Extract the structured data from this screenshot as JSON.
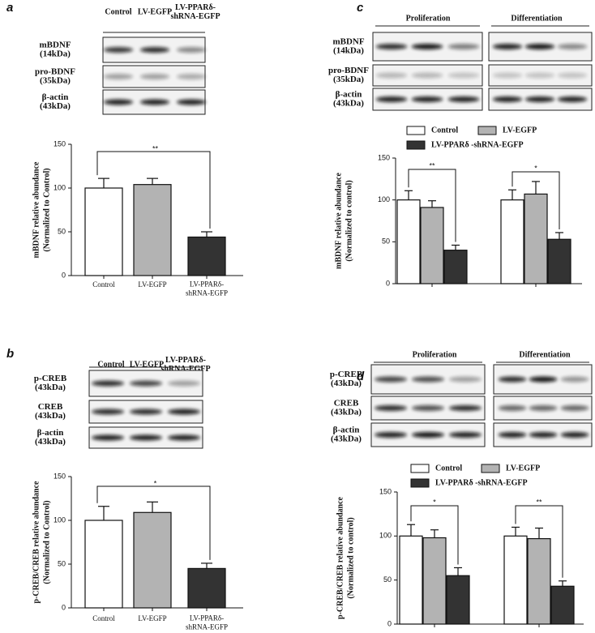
{
  "panels": [
    {
      "letter": "a",
      "blot": {
        "columns": [
          "Control",
          "LV-EGFP",
          [
            "LV-PPARδ-",
            "shRNA-EGFP"
          ]
        ],
        "rows": [
          [
            "mBDNF",
            "(14kDa)"
          ],
          [
            "pro-BDNF",
            "(35kDa)"
          ],
          [
            "β-actin",
            "(43kDa)"
          ]
        ]
      }
    },
    {
      "letter": "b",
      "blot": {
        "columns": [
          "Control",
          "LV-EGFP",
          [
            "LV-PPARδ-",
            "shRNA-EGFP"
          ]
        ],
        "rows": [
          [
            "p-CREB",
            "(43kDa)"
          ],
          [
            "CREB",
            "(43kDa)"
          ],
          [
            "β-actin",
            "(43kDa)"
          ]
        ]
      }
    },
    {
      "letter": "c",
      "blot": {
        "columns": [
          "Proliferation",
          "Differentiation"
        ],
        "rows": [
          [
            "mBDNF",
            "(14kDa)"
          ],
          [
            "pro-BDNF",
            "(35kDa)"
          ],
          [
            "β-actin",
            "(43kDa)"
          ]
        ]
      }
    },
    {
      "letter": "d",
      "blot": {
        "columns": [
          "Proliferation",
          "Differentiation"
        ],
        "rows": [
          [
            "p-CREB",
            "(43kDa)"
          ],
          [
            "CREB",
            "(43kDa)"
          ],
          [
            "β-actin",
            "(43kDa)"
          ]
        ]
      }
    }
  ],
  "chart_data": [
    {
      "type": "bar",
      "categories": [
        "Control",
        "LV-EGFP",
        [
          "LV-PPARδ-",
          "shRNA-EGFP"
        ]
      ],
      "values": [
        100,
        104,
        44
      ],
      "errors": [
        11,
        7,
        6
      ],
      "colors": [
        "#ffffff",
        "#b3b3b3",
        "#333333"
      ],
      "ylabel": [
        "mBDNF relative abundance",
        "(Normalized to Control)"
      ],
      "ylim": [
        0,
        150
      ],
      "yticks": [
        0,
        50,
        100,
        150
      ],
      "annotations": [
        "**"
      ]
    },
    {
      "type": "bar",
      "categories": [
        "Control",
        "LV-EGFP",
        [
          "LV-PPARδ-",
          "shRNA-EGFP"
        ]
      ],
      "values": [
        100,
        109,
        45
      ],
      "errors": [
        16,
        12,
        6
      ],
      "colors": [
        "#ffffff",
        "#b3b3b3",
        "#333333"
      ],
      "ylabel": [
        "p-CREB/CREB relative abundance",
        "(Normalized to Control)"
      ],
      "ylim": [
        0,
        150
      ],
      "yticks": [
        0,
        50,
        100,
        150
      ],
      "annotations": [
        "*"
      ]
    },
    {
      "type": "grouped",
      "categories": [
        null,
        null
      ],
      "series": [
        {
          "name": "Control",
          "color": "#ffffff",
          "values": [
            100,
            100
          ],
          "errors": [
            11,
            12
          ]
        },
        {
          "name": "LV-EGFP",
          "color": "#b3b3b3",
          "values": [
            91,
            107
          ],
          "errors": [
            8,
            15
          ]
        },
        {
          "name": "LV-PPARδ -shRNA-EGFP",
          "color": "#333333",
          "values": [
            40,
            53
          ],
          "errors": [
            6,
            8
          ]
        }
      ],
      "ylabel": [
        "mBDNF relative abundance",
        "(Normalized to control)"
      ],
      "ylim": [
        0,
        150
      ],
      "yticks": [
        0,
        50,
        100,
        150
      ],
      "annotations": [
        "**",
        "*"
      ]
    },
    {
      "type": "grouped",
      "categories": [
        null,
        null
      ],
      "series": [
        {
          "name": "Control",
          "color": "#ffffff",
          "values": [
            100,
            100
          ],
          "errors": [
            13,
            10
          ]
        },
        {
          "name": "LV-EGFP",
          "color": "#b3b3b3",
          "values": [
            98,
            97
          ],
          "errors": [
            9,
            12
          ]
        },
        {
          "name": "LV-PPARδ -shRNA-EGFP",
          "color": "#333333",
          "values": [
            55,
            43
          ],
          "errors": [
            9,
            6
          ]
        }
      ],
      "ylabel": [
        "p-CREB/CREB relative abundance",
        "(Normalized to control)"
      ],
      "ylim": [
        0,
        150
      ],
      "yticks": [
        0,
        50,
        100,
        150
      ],
      "annotations": [
        "*",
        "**"
      ]
    }
  ]
}
